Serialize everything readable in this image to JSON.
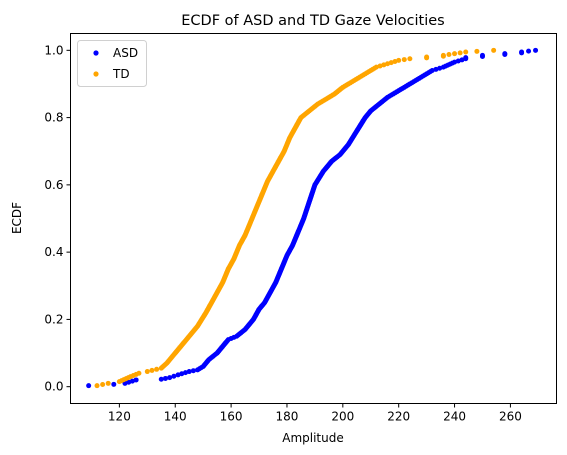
{
  "chart_data": {
    "type": "scatter",
    "title": "ECDF of ASD and TD Gaze Velocities",
    "xlabel": "Amplitude",
    "ylabel": "ECDF",
    "xlim": [
      102.5,
      276.5
    ],
    "ylim": [
      -0.05,
      1.05
    ],
    "xticks": [
      120,
      140,
      160,
      180,
      200,
      220,
      240,
      260
    ],
    "yticks": [
      0.0,
      0.2,
      0.4,
      0.6,
      0.8,
      1.0
    ],
    "xtick_labels": [
      "120",
      "140",
      "160",
      "180",
      "200",
      "220",
      "240",
      "260"
    ],
    "ytick_labels": [
      "0.0",
      "0.2",
      "0.4",
      "0.6",
      "0.8",
      "1.0"
    ],
    "legend_position": "top-left",
    "grid": false,
    "series": [
      {
        "name": "ASD",
        "color": "#0000ff",
        "anchors": [
          [
            109,
            0.003
          ],
          [
            118,
            0.007
          ],
          [
            122,
            0.01
          ],
          [
            126,
            0.02
          ],
          [
            135,
            0.022
          ],
          [
            138,
            0.027
          ],
          [
            141,
            0.035
          ],
          [
            145,
            0.045
          ],
          [
            148,
            0.05
          ],
          [
            150,
            0.06
          ],
          [
            152,
            0.08
          ],
          [
            155,
            0.1
          ],
          [
            157,
            0.12
          ],
          [
            159,
            0.14
          ],
          [
            162,
            0.15
          ],
          [
            165,
            0.17
          ],
          [
            168,
            0.2
          ],
          [
            170,
            0.23
          ],
          [
            172,
            0.25
          ],
          [
            174,
            0.28
          ],
          [
            176,
            0.31
          ],
          [
            178,
            0.35
          ],
          [
            180,
            0.39
          ],
          [
            182,
            0.42
          ],
          [
            184,
            0.46
          ],
          [
            186,
            0.5
          ],
          [
            188,
            0.55
          ],
          [
            190,
            0.6
          ],
          [
            193,
            0.64
          ],
          [
            196,
            0.67
          ],
          [
            199,
            0.69
          ],
          [
            202,
            0.72
          ],
          [
            205,
            0.76
          ],
          [
            208,
            0.8
          ],
          [
            210,
            0.82
          ],
          [
            213,
            0.84
          ],
          [
            216,
            0.86
          ],
          [
            220,
            0.88
          ],
          [
            224,
            0.9
          ],
          [
            228,
            0.92
          ],
          [
            232,
            0.94
          ],
          [
            236,
            0.95
          ],
          [
            240,
            0.965
          ],
          [
            244,
            0.975
          ],
          [
            250,
            0.985
          ],
          [
            258,
            0.99
          ],
          [
            264,
            0.995
          ],
          [
            269,
            1.0
          ]
        ]
      },
      {
        "name": "TD",
        "color": "#ffa500",
        "anchors": [
          [
            112,
            0.003
          ],
          [
            116,
            0.01
          ],
          [
            120,
            0.015
          ],
          [
            124,
            0.03
          ],
          [
            127,
            0.04
          ],
          [
            130,
            0.045
          ],
          [
            135,
            0.055
          ],
          [
            137,
            0.07
          ],
          [
            140,
            0.1
          ],
          [
            142,
            0.12
          ],
          [
            145,
            0.15
          ],
          [
            148,
            0.18
          ],
          [
            151,
            0.22
          ],
          [
            153,
            0.25
          ],
          [
            155,
            0.28
          ],
          [
            157,
            0.31
          ],
          [
            159,
            0.35
          ],
          [
            161,
            0.38
          ],
          [
            163,
            0.42
          ],
          [
            165,
            0.45
          ],
          [
            167,
            0.49
          ],
          [
            169,
            0.53
          ],
          [
            171,
            0.57
          ],
          [
            173,
            0.61
          ],
          [
            175,
            0.64
          ],
          [
            177,
            0.67
          ],
          [
            179,
            0.7
          ],
          [
            181,
            0.74
          ],
          [
            183,
            0.77
          ],
          [
            185,
            0.8
          ],
          [
            188,
            0.82
          ],
          [
            191,
            0.84
          ],
          [
            194,
            0.855
          ],
          [
            197,
            0.87
          ],
          [
            200,
            0.89
          ],
          [
            204,
            0.91
          ],
          [
            208,
            0.93
          ],
          [
            212,
            0.95
          ],
          [
            216,
            0.96
          ],
          [
            220,
            0.97
          ],
          [
            224,
            0.975
          ],
          [
            230,
            0.98
          ],
          [
            236,
            0.985
          ],
          [
            240,
            0.99
          ],
          [
            244,
            0.995
          ],
          [
            248,
            0.997
          ],
          [
            254,
            1.0
          ]
        ]
      }
    ]
  }
}
